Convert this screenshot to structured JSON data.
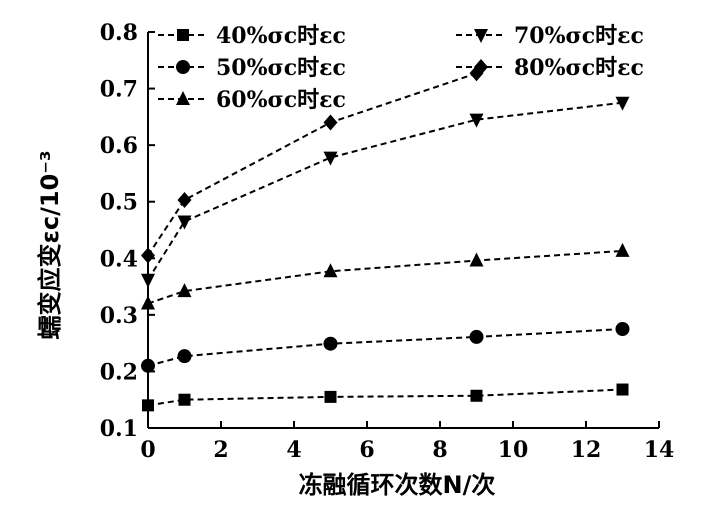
{
  "chart_data": {
    "type": "line",
    "xlabel": "冻融循环次数N/次",
    "ylabel": "蠕变应变εc/10⁻³",
    "xlim": [
      0,
      14
    ],
    "ylim": [
      0.1,
      0.8
    ],
    "xticks": [
      "0",
      "2",
      "4",
      "6",
      "8",
      "10",
      "12",
      "14"
    ],
    "yticks": [
      "0.1",
      "0.2",
      "0.3",
      "0.4",
      "0.5",
      "0.6",
      "0.7",
      "0.8"
    ],
    "legend_position": "top",
    "grid": false,
    "series": [
      {
        "name": "40%σc时εc",
        "marker": "square",
        "x": [
          0,
          1,
          5,
          9,
          13
        ],
        "y": [
          0.14,
          0.15,
          0.155,
          0.157,
          0.168
        ]
      },
      {
        "name": "50%σc时εc",
        "marker": "circle",
        "x": [
          0,
          1,
          5,
          9,
          13
        ],
        "y": [
          0.21,
          0.227,
          0.249,
          0.261,
          0.275
        ]
      },
      {
        "name": "60%σc时εc",
        "marker": "triangle-up",
        "x": [
          0,
          1,
          5,
          9,
          13
        ],
        "y": [
          0.32,
          0.342,
          0.377,
          0.396,
          0.413
        ]
      },
      {
        "name": "70%σc时εc",
        "marker": "triangle-down",
        "x": [
          0,
          1,
          5,
          9,
          13
        ],
        "y": [
          0.362,
          0.465,
          0.578,
          0.645,
          0.675
        ]
      },
      {
        "name": "80%σc时εc",
        "marker": "diamond",
        "x": [
          0,
          1,
          5,
          9
        ],
        "y": [
          0.405,
          0.503,
          0.64,
          0.727
        ]
      }
    ]
  }
}
